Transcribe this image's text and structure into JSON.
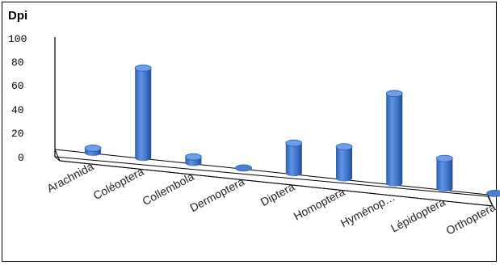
{
  "chart_data": {
    "type": "bar",
    "subtype": "3d-cylinder",
    "ylabel": "Dpi",
    "xlabel": "",
    "title": "",
    "ylim": [
      0,
      100
    ],
    "yticks": [
      "100",
      "80",
      "60",
      "40",
      "20",
      "0"
    ],
    "categories": [
      "Arachnida",
      "Coléoptera",
      "Collembola",
      "Dermoptera",
      "Diptera",
      "Homoptera",
      "Hyménop…",
      "Lépidoptera",
      "Orthoptera"
    ],
    "values": [
      3,
      60,
      4,
      0,
      20,
      21,
      60,
      20,
      0
    ],
    "bar_color": "#4a7fd4",
    "grid": false,
    "legend": "none"
  }
}
